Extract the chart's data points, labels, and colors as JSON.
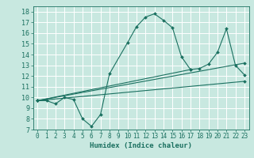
{
  "xlabel": "Humidex (Indice chaleur)",
  "bg_color": "#c8e8e0",
  "grid_color": "#ffffff",
  "line_color": "#1a7060",
  "xlim": [
    -0.5,
    23.5
  ],
  "ylim": [
    7,
    18.5
  ],
  "xticks": [
    0,
    1,
    2,
    3,
    4,
    5,
    6,
    7,
    8,
    9,
    10,
    11,
    12,
    13,
    14,
    15,
    16,
    17,
    18,
    19,
    20,
    21,
    22,
    23
  ],
  "yticks": [
    7,
    8,
    9,
    10,
    11,
    12,
    13,
    14,
    15,
    16,
    17,
    18
  ],
  "curve1_x": [
    0,
    1,
    2,
    3,
    4,
    5,
    6,
    7,
    8,
    10,
    11,
    12,
    13,
    14,
    15,
    16,
    17
  ],
  "curve1_y": [
    9.7,
    9.7,
    9.4,
    10.0,
    9.8,
    8.0,
    7.3,
    8.4,
    12.2,
    15.1,
    16.6,
    17.5,
    17.8,
    17.2,
    16.5,
    13.8,
    12.6
  ],
  "curve2_x": [
    0,
    17,
    18,
    19,
    20,
    21,
    22,
    23
  ],
  "curve2_y": [
    9.7,
    12.6,
    12.7,
    13.1,
    14.2,
    16.4,
    13.0,
    12.1
  ],
  "curve3_x": [
    0,
    23
  ],
  "curve3_y": [
    9.7,
    13.2
  ],
  "curve4_x": [
    0,
    23
  ],
  "curve4_y": [
    9.7,
    11.5
  ]
}
